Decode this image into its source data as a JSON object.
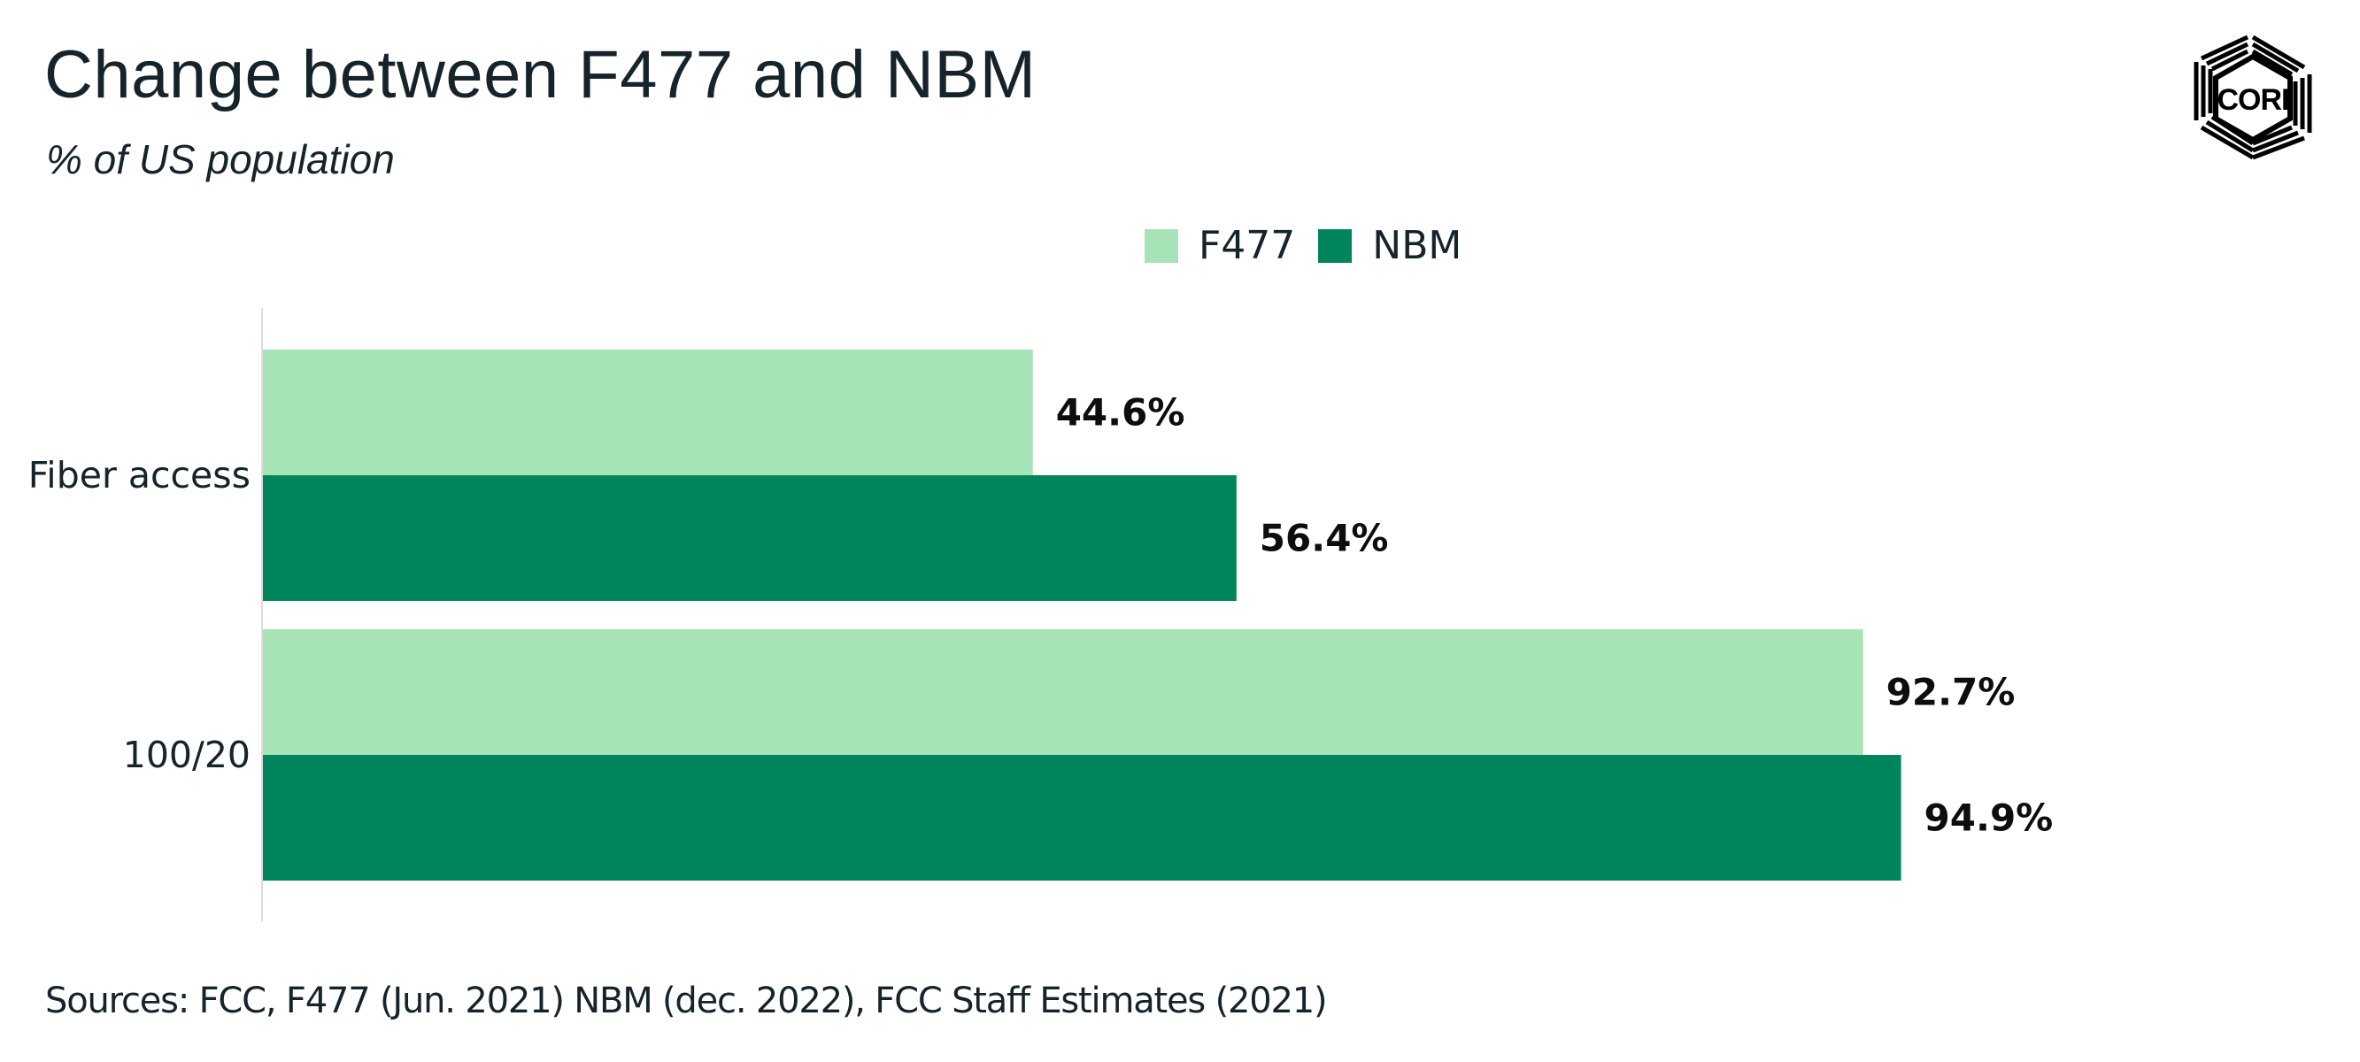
{
  "header": {
    "title": "Change between F477 and NBM",
    "subtitle": "% of US population",
    "logo_text": "CORI"
  },
  "legend": [
    {
      "label": "F477",
      "color": "#a6e3b7"
    },
    {
      "label": "NBM",
      "color": "#00845c"
    }
  ],
  "footer": {
    "sources": "Sources: FCC, F477 (Jun. 2021) NBM (dec. 2022), FCC Staff Estimates (2021)"
  },
  "chart_data": {
    "type": "bar",
    "orientation": "horizontal",
    "title": "Change between F477 and NBM",
    "subtitle": "% of US population",
    "categories": [
      "Fiber access",
      "100/20"
    ],
    "series": [
      {
        "name": "F477",
        "color": "#a6e3b7",
        "values": [
          44.6,
          92.7
        ],
        "labels": [
          "44.6%",
          "92.7%"
        ]
      },
      {
        "name": "NBM",
        "color": "#00845c",
        "values": [
          56.4,
          94.9
        ],
        "labels": [
          "56.4%",
          "94.9%"
        ]
      }
    ],
    "xlabel": "",
    "ylabel": "",
    "xlim": [
      0,
      100
    ],
    "grid": false,
    "legend_position": "top-center",
    "value_unit": "%"
  }
}
